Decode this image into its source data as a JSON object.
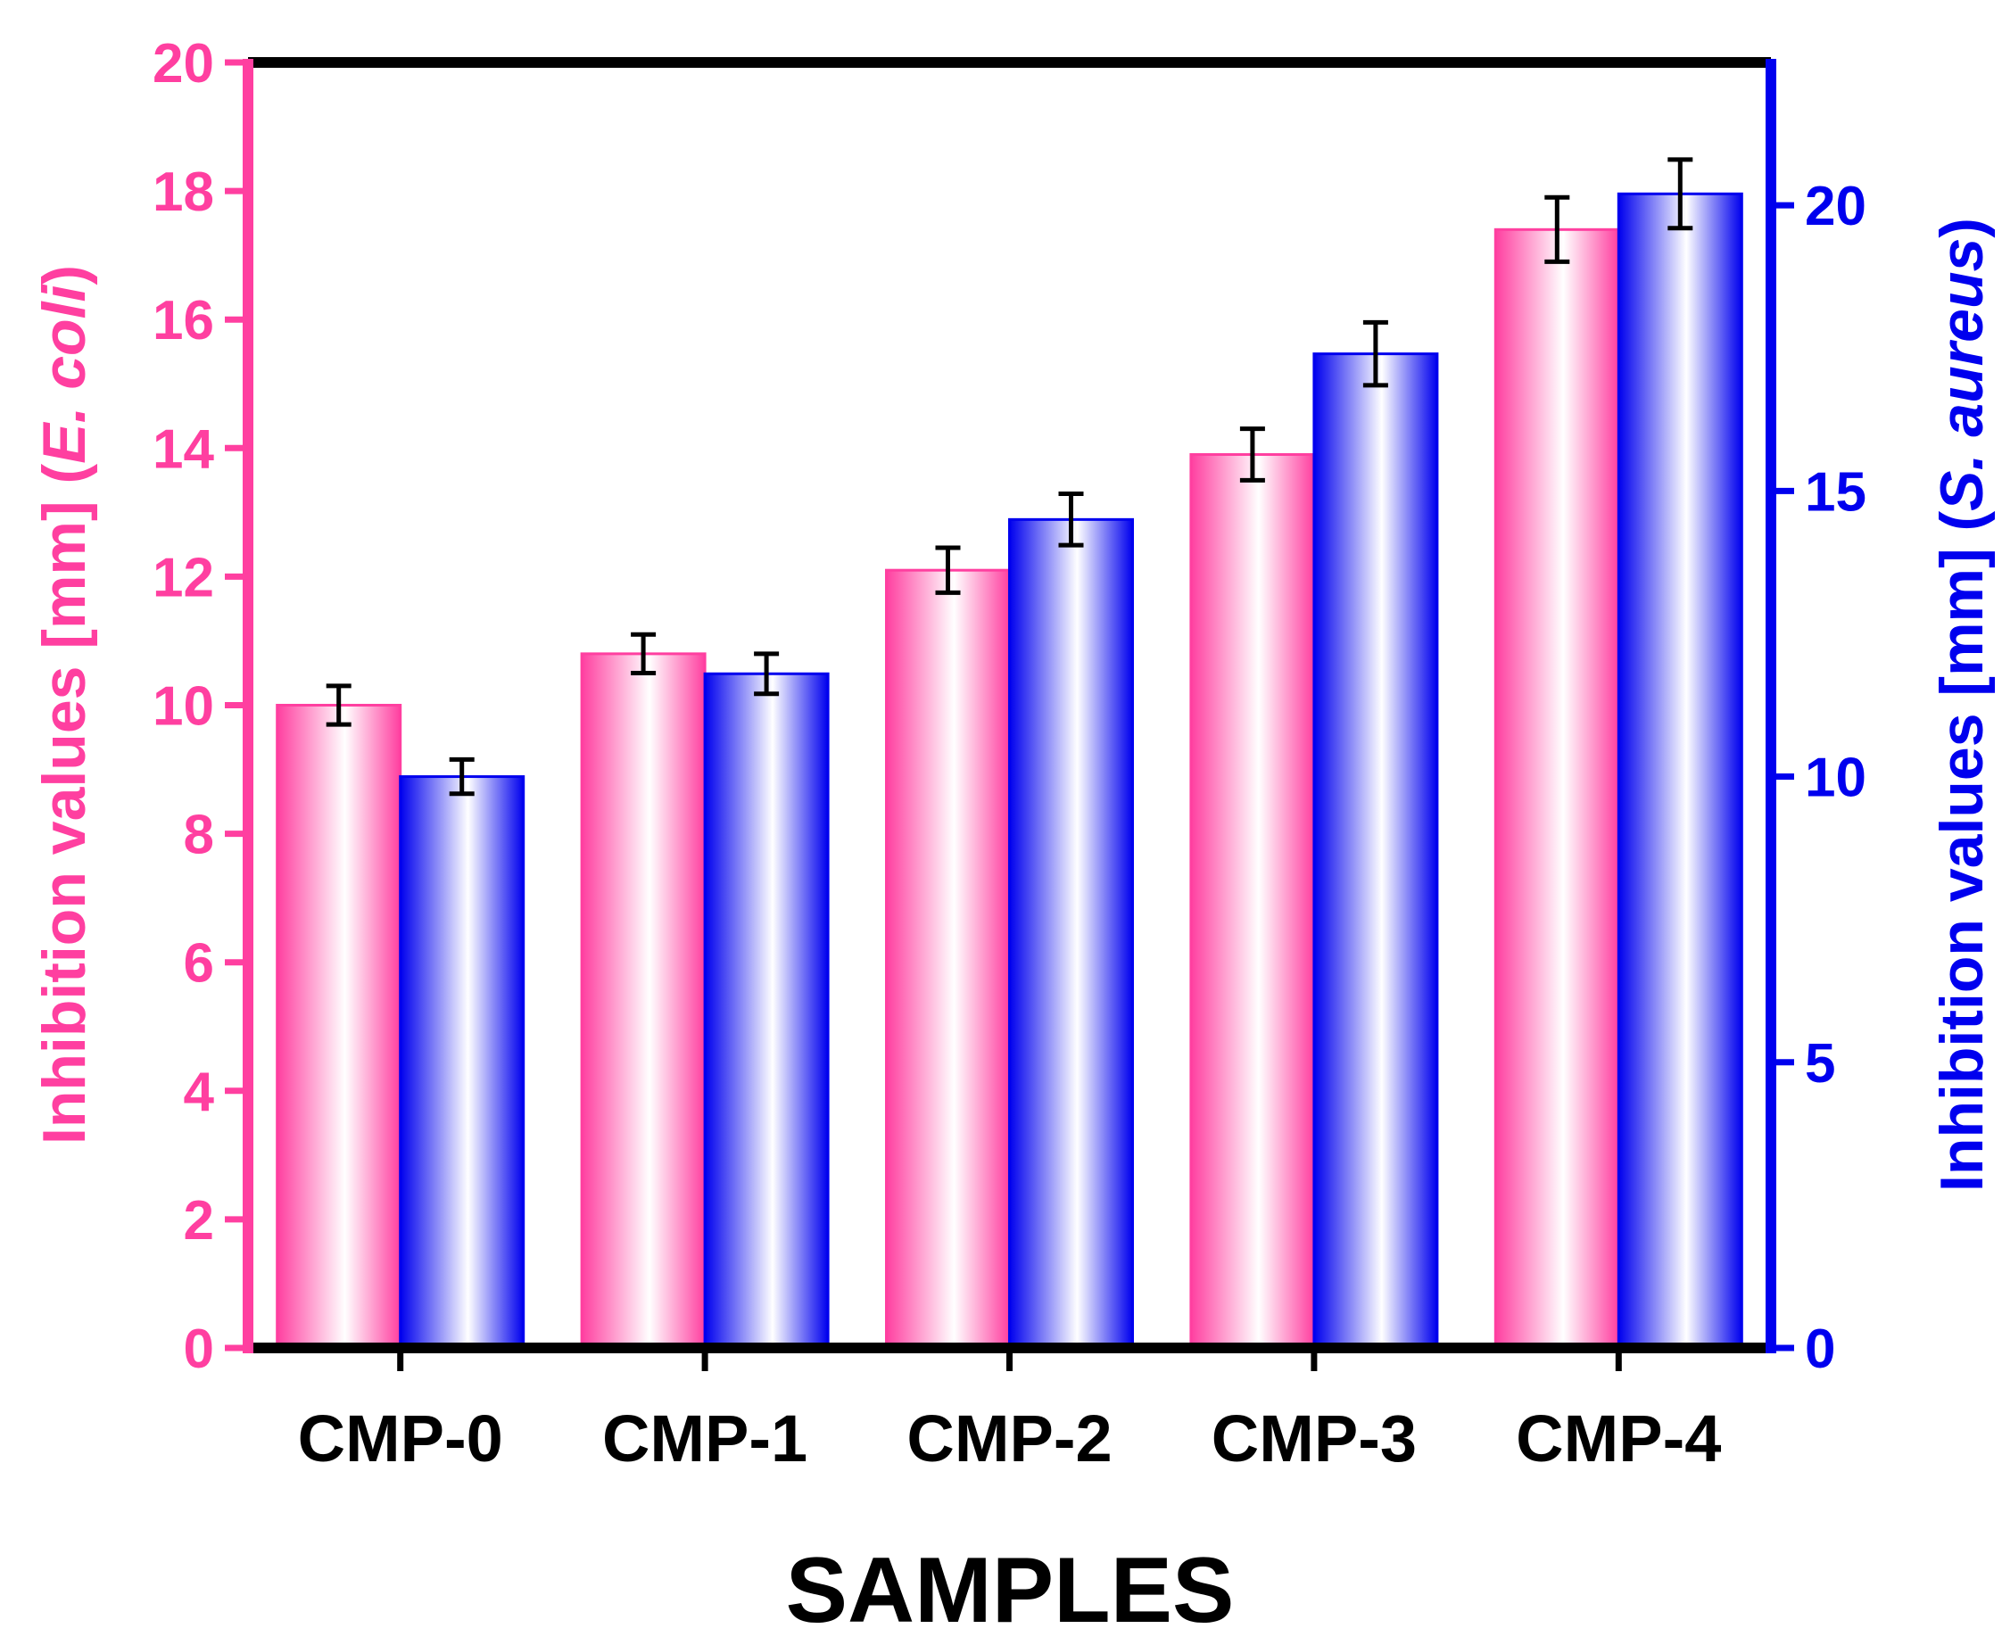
{
  "chart_data": {
    "type": "bar",
    "categories": [
      "CMP-0",
      "CMP-1",
      "CMP-2",
      "CMP-3",
      "CMP-4"
    ],
    "xlabel": "SAMPLES",
    "left_axis": {
      "label_prefix": "Inhibition values [mm] (",
      "label_species": "E. coli",
      "label_suffix": ")",
      "ylim": [
        0,
        20
      ],
      "ticks": [
        0,
        2,
        4,
        6,
        8,
        10,
        12,
        14,
        16,
        18,
        20
      ],
      "color": "#ff3fa0"
    },
    "right_axis": {
      "label_prefix": "Inhibition values [mm] (",
      "label_species": "S. aureus",
      "label_suffix": ")",
      "ylim": [
        0,
        22.5
      ],
      "ticks": [
        0,
        5,
        10,
        15,
        20
      ],
      "color": "#0000ee"
    },
    "series": [
      {
        "name": "E. coli",
        "axis": "left",
        "color": "#ff3fa0",
        "values": [
          10.0,
          10.8,
          12.1,
          13.9,
          17.4
        ],
        "errors": [
          0.3,
          0.3,
          0.35,
          0.4,
          0.5
        ]
      },
      {
        "name": "S. aureus",
        "axis": "right",
        "color": "#0000ee",
        "values": [
          10.0,
          11.8,
          14.5,
          17.4,
          20.2
        ],
        "errors": [
          0.3,
          0.35,
          0.45,
          0.55,
          0.6
        ]
      }
    ]
  }
}
